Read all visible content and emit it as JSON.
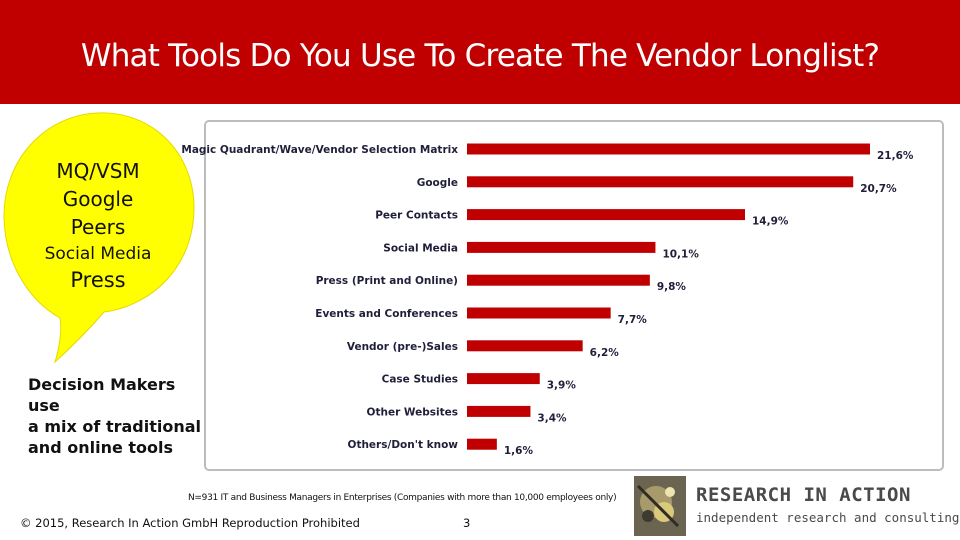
{
  "header": {
    "title": "What Tools Do You Use To Create The Vendor Longlist?"
  },
  "bubble": {
    "lines": [
      "MQ/VSM",
      "Google",
      "Peers",
      "Social Media",
      "Press"
    ]
  },
  "caption": {
    "lines": [
      "Decision Makers use",
      "a mix of traditional",
      "and online tools"
    ]
  },
  "chart_data": {
    "type": "bar",
    "orientation": "horizontal",
    "categories": [
      "Magic Quadrant/Wave/Vendor Selection Matrix",
      "Google",
      "Peer Contacts",
      "Social Media",
      "Press (Print and Online)",
      "Events and Conferences",
      "Vendor (pre-)Sales",
      "Case Studies",
      "Other Websites",
      "Others/Don't know"
    ],
    "values": [
      21.6,
      20.7,
      14.9,
      10.1,
      9.8,
      7.7,
      6.2,
      3.9,
      3.4,
      1.6
    ],
    "data_labels": [
      "21,6%",
      "20,7%",
      "14,9%",
      "10,1%",
      "9,8%",
      "7,7%",
      "6,2%",
      "3,9%",
      "3,4%",
      "1,6%"
    ],
    "color": "#c00000",
    "xlim": [
      0,
      21.6
    ],
    "grid": false,
    "legend": "none"
  },
  "note": "N=931 IT and Business Managers in Enterprises (Companies with more than 10,000 employees only)",
  "footer": {
    "copyright": "© 2015, Research In Action GmbH Reproduction Prohibited",
    "page": "3"
  },
  "logo": {
    "title": "RESEARCH IN ACTION",
    "subtitle": "independent research and consulting"
  },
  "colors": {
    "header": "#c00000",
    "bubble": "#ffff00",
    "bar": "#c00000"
  }
}
